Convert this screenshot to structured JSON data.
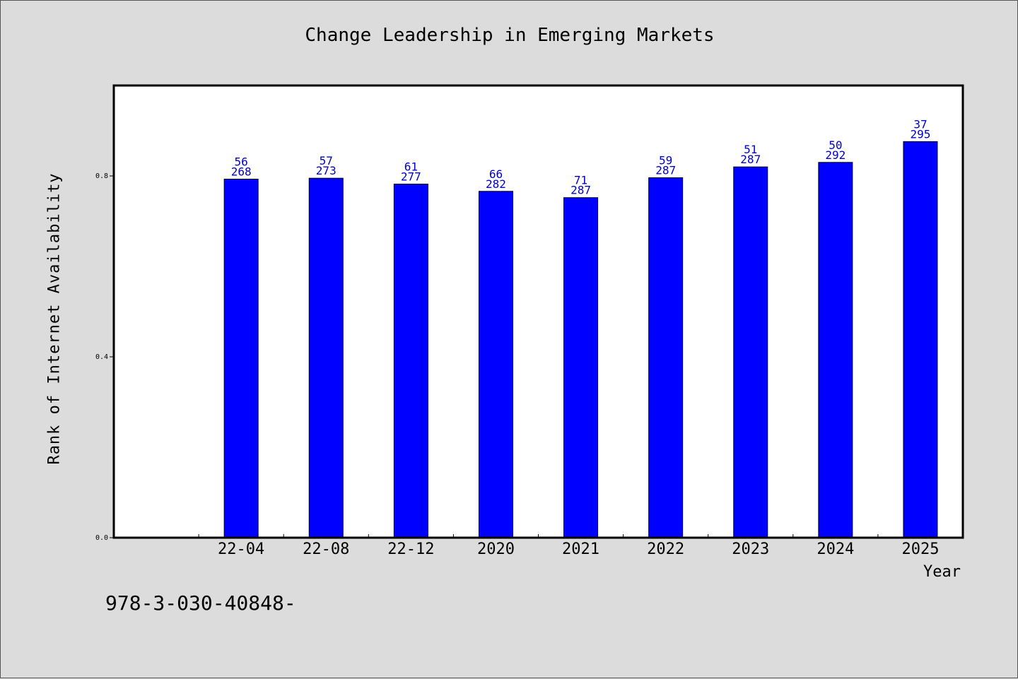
{
  "chart_data": {
    "type": "bar",
    "title": "Change Leadership in Emerging Markets",
    "xlabel": "Year",
    "ylabel": "Rank of Internet Availability",
    "ylim": [
      0,
      1.0
    ],
    "yticks": [
      "0.0",
      "0.4",
      "0.8"
    ],
    "categories": [
      "22-04",
      "22-08",
      "22-12",
      "2020",
      "2021",
      "2022",
      "2023",
      "2024",
      "2025"
    ],
    "values": [
      0.793,
      0.795,
      0.782,
      0.766,
      0.752,
      0.796,
      0.82,
      0.83,
      0.876
    ],
    "label_top": [
      "56",
      "57",
      "61",
      "66",
      "71",
      "59",
      "51",
      "50",
      "37"
    ],
    "label_bottom": [
      "268",
      "273",
      "277",
      "282",
      "287",
      "287",
      "287",
      "292",
      "295"
    ],
    "bar_color": "#0000ff",
    "label_color": "#0000cc",
    "grid": false
  },
  "footer": {
    "code": "978-3-030-40848-"
  }
}
